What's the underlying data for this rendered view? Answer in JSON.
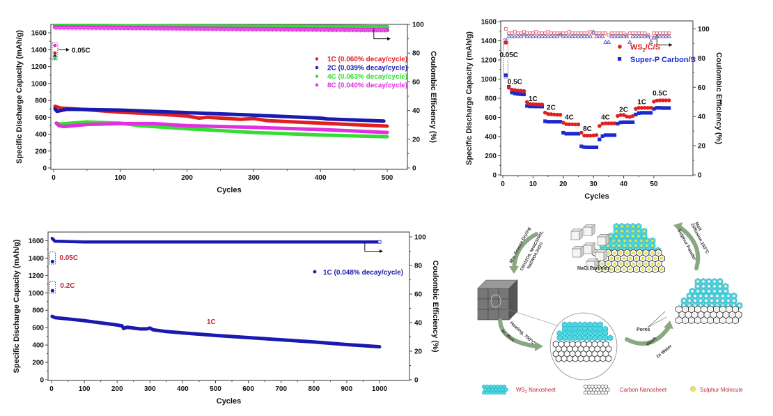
{
  "chart_data": [
    {
      "id": "cycling-500",
      "type": "line",
      "title": "",
      "xlabel": "Cycles",
      "ylabel": "Specific Discharge Capacity (mAh/g)",
      "y2label": "Coulombic Efficiency (%)",
      "xlim": [
        0,
        500
      ],
      "ylim": [
        0,
        1700
      ],
      "y2lim": [
        0,
        100
      ],
      "xticks": [
        "0",
        "100",
        "200",
        "300",
        "400",
        "500"
      ],
      "yticks": [
        "0",
        "200",
        "400",
        "600",
        "800",
        "1000",
        "1200",
        "1400",
        "1600"
      ],
      "y2ticks": [
        "0",
        "20",
        "40",
        "60",
        "80",
        "100"
      ],
      "legend_position": "top-right",
      "annotations": {
        "initial_rate": "0.05C"
      },
      "series": [
        {
          "name": "1C (0.060% decay/cycle)",
          "color": "#e02020",
          "initial_0_05C": 1360,
          "capacity": [
            [
              2,
              730
            ],
            [
              10,
              710
            ],
            [
              50,
              690
            ],
            [
              100,
              660
            ],
            [
              150,
              640
            ],
            [
              200,
              615
            ],
            [
              218,
              590
            ],
            [
              230,
              600
            ],
            [
              280,
              575
            ],
            [
              300,
              585
            ],
            [
              320,
              560
            ],
            [
              400,
              530
            ],
            [
              500,
              495
            ]
          ],
          "ce": [
            [
              2,
              99
            ],
            [
              500,
              98
            ]
          ]
        },
        {
          "name": "2C (0.039% decay/cycle)",
          "color": "#1a1ab0",
          "initial_0_05C": 1320,
          "capacity": [
            [
              2,
              700
            ],
            [
              5,
              670
            ],
            [
              20,
              695
            ],
            [
              100,
              685
            ],
            [
              200,
              655
            ],
            [
              300,
              625
            ],
            [
              400,
              590
            ],
            [
              410,
              580
            ],
            [
              495,
              555
            ]
          ],
          "ce": [
            [
              2,
              99
            ],
            [
              500,
              98
            ]
          ]
        },
        {
          "name": "4C (0.063% decay/cycle)",
          "color": "#33dd33",
          "initial_0_05C": 1300,
          "capacity": [
            [
              4,
              530
            ],
            [
              10,
              520
            ],
            [
              50,
              545
            ],
            [
              100,
              530
            ],
            [
              130,
              500
            ],
            [
              200,
              465
            ],
            [
              300,
              420
            ],
            [
              400,
              390
            ],
            [
              500,
              370
            ]
          ],
          "ce": [
            [
              2,
              99
            ],
            [
              500,
              98
            ]
          ]
        },
        {
          "name": "8C (0.040% decay/cycle)",
          "color": "#e030e0",
          "initial_0_05C": 1450,
          "capacity": [
            [
              4,
              530
            ],
            [
              8,
              500
            ],
            [
              15,
              490
            ],
            [
              50,
              515
            ],
            [
              100,
              525
            ],
            [
              150,
              525
            ],
            [
              200,
              500
            ],
            [
              300,
              480
            ],
            [
              400,
              455
            ],
            [
              500,
              420
            ]
          ],
          "ce": [
            [
              2,
              98
            ],
            [
              500,
              96
            ]
          ]
        }
      ]
    },
    {
      "id": "rate-capability",
      "type": "scatter",
      "title": "",
      "xlabel": "Cycles",
      "ylabel": "Specific Discharge Capacity (mAh/g)",
      "y2label": "Coulombic Efficiency (%)",
      "xlim": [
        0,
        56
      ],
      "ylim": [
        0,
        1600
      ],
      "y2lim": [
        0,
        105
      ],
      "xticks": [
        "0",
        "10",
        "20",
        "30",
        "40",
        "50"
      ],
      "yticks": [
        "0",
        "200",
        "400",
        "600",
        "800",
        "1000",
        "1200",
        "1400",
        "1600"
      ],
      "y2ticks": [
        "0",
        "20",
        "40",
        "60",
        "80",
        "100"
      ],
      "legend_position": "top-right",
      "rate_labels": [
        {
          "text": "0.05C",
          "x": 2,
          "y": 1230
        },
        {
          "text": "0.5C",
          "x": 4,
          "y": 950
        },
        {
          "text": "1C",
          "x": 10,
          "y": 770
        },
        {
          "text": "2C",
          "x": 16,
          "y": 680
        },
        {
          "text": "4C",
          "x": 22,
          "y": 580
        },
        {
          "text": "8C",
          "x": 28,
          "y": 460
        },
        {
          "text": "4C",
          "x": 34,
          "y": 580
        },
        {
          "text": "2C",
          "x": 40,
          "y": 660
        },
        {
          "text": "1C",
          "x": 46,
          "y": 740
        },
        {
          "text": "0.5C",
          "x": 52,
          "y": 830
        }
      ],
      "series": [
        {
          "name": "WS2/C/S",
          "color": "#e02020",
          "marker": "circle",
          "x": [
            1,
            2,
            3,
            4,
            5,
            6,
            7,
            8,
            9,
            10,
            11,
            12,
            13,
            14,
            15,
            16,
            17,
            18,
            19,
            20,
            21,
            22,
            23,
            24,
            25,
            26,
            27,
            28,
            29,
            30,
            31,
            32,
            33,
            34,
            35,
            36,
            37,
            38,
            39,
            40,
            41,
            42,
            43,
            44,
            45,
            46,
            47,
            48,
            49,
            50,
            51,
            52,
            53,
            54,
            55
          ],
          "values": [
            1380,
            910,
            890,
            885,
            880,
            878,
            875,
            760,
            740,
            738,
            736,
            735,
            734,
            650,
            635,
            633,
            630,
            628,
            627,
            545,
            530,
            528,
            528,
            527,
            527,
            440,
            410,
            410,
            410,
            412,
            415,
            510,
            535,
            538,
            538,
            538,
            538,
            615,
            625,
            625,
            610,
            605,
            615,
            690,
            700,
            700,
            700,
            700,
            700,
            765,
            775,
            778,
            778,
            778,
            778
          ],
          "ce": [
            100,
            97,
            97,
            98,
            97,
            97,
            98,
            97,
            97,
            97,
            98,
            97,
            97,
            97,
            98,
            97,
            97,
            97,
            97,
            97,
            97,
            98,
            97,
            97,
            97,
            97,
            97,
            97,
            98,
            97,
            97,
            97,
            97,
            97,
            96,
            97,
            97,
            97,
            97,
            97,
            96,
            97,
            97,
            97,
            97,
            97,
            97,
            96,
            94,
            97,
            97,
            97,
            97,
            97,
            97
          ]
        },
        {
          "name": "Super-P Carbon/S",
          "color": "#1a2ad0",
          "marker": "square",
          "x": [
            1,
            2,
            3,
            4,
            5,
            6,
            7,
            8,
            9,
            10,
            11,
            12,
            13,
            14,
            15,
            16,
            17,
            18,
            19,
            20,
            21,
            22,
            23,
            24,
            25,
            26,
            27,
            28,
            29,
            30,
            31,
            32,
            33,
            34,
            35,
            36,
            37,
            38,
            39,
            40,
            41,
            42,
            43,
            44,
            45,
            46,
            47,
            48,
            49,
            50,
            51,
            52,
            53,
            54,
            55
          ],
          "values": [
            1040,
            920,
            860,
            850,
            845,
            842,
            840,
            720,
            715,
            715,
            714,
            714,
            713,
            560,
            555,
            555,
            555,
            555,
            555,
            440,
            430,
            430,
            430,
            430,
            430,
            298,
            290,
            288,
            288,
            288,
            288,
            370,
            405,
            415,
            415,
            415,
            415,
            535,
            548,
            550,
            550,
            550,
            550,
            630,
            645,
            648,
            648,
            648,
            648,
            690,
            700,
            700,
            698,
            698,
            698
          ],
          "ce": [
            92,
            95,
            95,
            95,
            95,
            95,
            96,
            95,
            95,
            95,
            95,
            95,
            95,
            95,
            95,
            95,
            95,
            95,
            96,
            95,
            95,
            95,
            95,
            95,
            95,
            95,
            95,
            95,
            95,
            98,
            95,
            95,
            95,
            91,
            91,
            95,
            95,
            95,
            95,
            95,
            95,
            91,
            95,
            95,
            95,
            95,
            95,
            95,
            91,
            94,
            95,
            95,
            95,
            95,
            95
          ]
        }
      ]
    },
    {
      "id": "cycling-1000",
      "type": "line",
      "title": "",
      "xlabel": "Cycles",
      "ylabel": "Specific Discharge Capacity (mAh/g)",
      "y2label": "Coulombic Efficiency (%)",
      "xlim": [
        0,
        1000
      ],
      "ylim": [
        0,
        1700
      ],
      "y2lim": [
        0,
        100
      ],
      "xticks": [
        "0",
        "100",
        "200",
        "300",
        "400",
        "500",
        "600",
        "700",
        "800",
        "900",
        "1000"
      ],
      "yticks": [
        "0",
        "200",
        "400",
        "600",
        "800",
        "1000",
        "1200",
        "1400",
        "1600"
      ],
      "y2ticks": [
        "0",
        "20",
        "40",
        "60",
        "80",
        "100"
      ],
      "legend_position": "top-right",
      "annotations": {
        "rate_0_05C": "0.05C",
        "rate_0_2C": "0.2C",
        "rate_main": "1C"
      },
      "series": [
        {
          "name": "1C (0.048% decay/cycle)",
          "color": "#1a1ab0",
          "initial_points": [
            {
              "rate": "0.05C",
              "capacity": 1360
            },
            {
              "rate": "0.2C",
              "capacity": 1025
            }
          ],
          "capacity": [
            [
              2,
              730
            ],
            [
              10,
              715
            ],
            [
              50,
              700
            ],
            [
              100,
              680
            ],
            [
              150,
              655
            ],
            [
              200,
              630
            ],
            [
              215,
              620
            ],
            [
              220,
              590
            ],
            [
              230,
              605
            ],
            [
              270,
              585
            ],
            [
              290,
              585
            ],
            [
              300,
              595
            ],
            [
              310,
              575
            ],
            [
              350,
              555
            ],
            [
              400,
              540
            ],
            [
              500,
              510
            ],
            [
              600,
              485
            ],
            [
              700,
              460
            ],
            [
              800,
              435
            ],
            [
              900,
              405
            ],
            [
              1000,
              380
            ]
          ],
          "ce": [
            [
              2,
              99
            ],
            [
              10,
              97
            ],
            [
              100,
              96.5
            ],
            [
              1000,
              96.5
            ]
          ]
        }
      ]
    }
  ],
  "schematic": {
    "steps": [
      {
        "id": "mix",
        "line1": "Mix, Freeze Drying",
        "reagents_line1": "C6H12O6, NH4CSNH2,",
        "reagents_line2": "Na2WO4.2H2O"
      },
      {
        "id": "heat",
        "line1": "Heating, 750°C",
        "line2": "Ar, 8hrs"
      },
      {
        "id": "wash",
        "line1": "Wash",
        "line2": "DI Water"
      },
      {
        "id": "melt",
        "line1": "Melt",
        "line2": "Diffusion,155°C",
        "line3": "Sulphur Powder"
      }
    ],
    "labels": {
      "nacl": "NaCl Particles",
      "pores": "Pores"
    },
    "legend": [
      {
        "label": "WS2 Nanosheet",
        "sub": "2",
        "base": "WS",
        "rest": " Nanosheet",
        "color": "#4fd8e0"
      },
      {
        "label": "Carbon Nanosheet",
        "color": "#ffffff"
      },
      {
        "label": "Sulphur Molecule",
        "color": "#e8ec30"
      }
    ],
    "label_color": "#c0283a"
  }
}
